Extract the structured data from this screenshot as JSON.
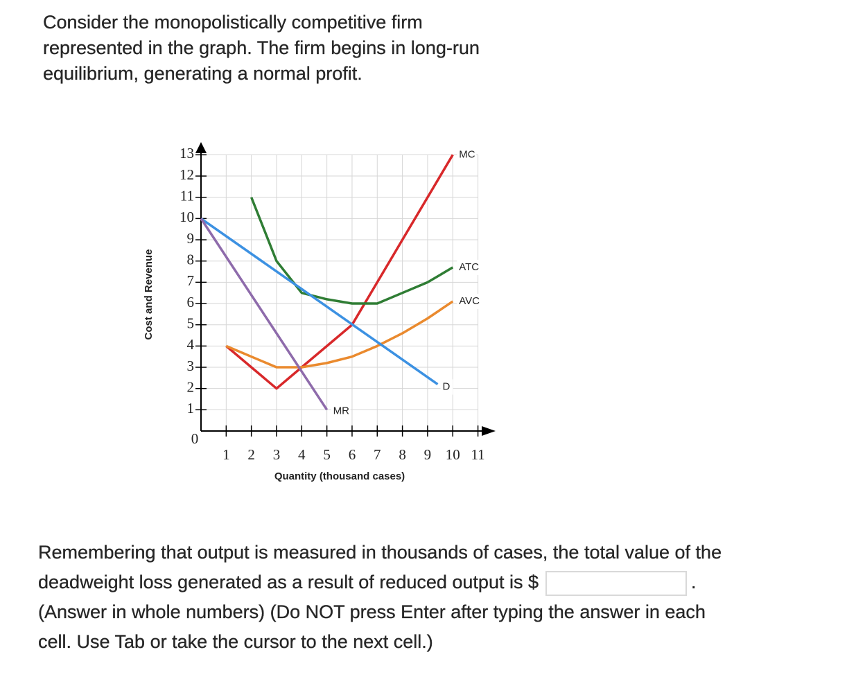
{
  "intro_lines": [
    "Consider the monopolistically competitive firm",
    "represented in the graph. The firm begins in long-run",
    "equilibrium, generating a normal profit."
  ],
  "chart_data": {
    "type": "line",
    "x_label": "Quantity (thousand cases)",
    "y_label": "Cost and Revenue",
    "xlim": [
      0,
      11.7
    ],
    "ylim": [
      0,
      13.6
    ],
    "xticks": [
      0,
      1,
      2,
      3,
      4,
      5,
      6,
      7,
      8,
      9,
      10,
      11
    ],
    "yticks": [
      1,
      2,
      3,
      4,
      5,
      6,
      7,
      8,
      9,
      10,
      11,
      12,
      13
    ],
    "grid": true,
    "series": [
      {
        "name": "MC",
        "color": "#d8282a",
        "x": [
          1,
          2,
          3,
          4,
          5,
          6,
          7,
          8,
          9,
          10
        ],
        "values": [
          4,
          3,
          2,
          3,
          4,
          5,
          7,
          9,
          11,
          13
        ]
      },
      {
        "name": "ATC",
        "color": "#2f7d34",
        "x": [
          2,
          3,
          4,
          5,
          6,
          7,
          8,
          9,
          10
        ],
        "values": [
          11,
          8,
          6.5,
          6.2,
          6,
          6,
          6.5,
          7,
          7.7
        ]
      },
      {
        "name": "AVC",
        "color": "#ea8a2e",
        "x": [
          1,
          2,
          3,
          4,
          5,
          6,
          7,
          8,
          9,
          10
        ],
        "values": [
          4,
          3.5,
          3,
          3,
          3.2,
          3.5,
          4,
          4.6,
          5.3,
          6.1
        ]
      },
      {
        "name": "D",
        "color": "#3c91e2",
        "x": [
          0,
          9.4
        ],
        "values": [
          10,
          2.2
        ]
      },
      {
        "name": "MR",
        "color": "#8e6bab",
        "x": [
          0,
          5
        ],
        "values": [
          10,
          1
        ]
      }
    ]
  },
  "question": {
    "line1": "Remembering that output is measured in thousands of cases, the total value of the",
    "line2": "deadweight loss generated as a result of reduced output is $",
    "line2_end": ".",
    "line3": "(Answer in whole numbers) (Do NOT press Enter after typing the answer in each",
    "line4": "cell. Use Tab or take the cursor to the next cell.)"
  }
}
